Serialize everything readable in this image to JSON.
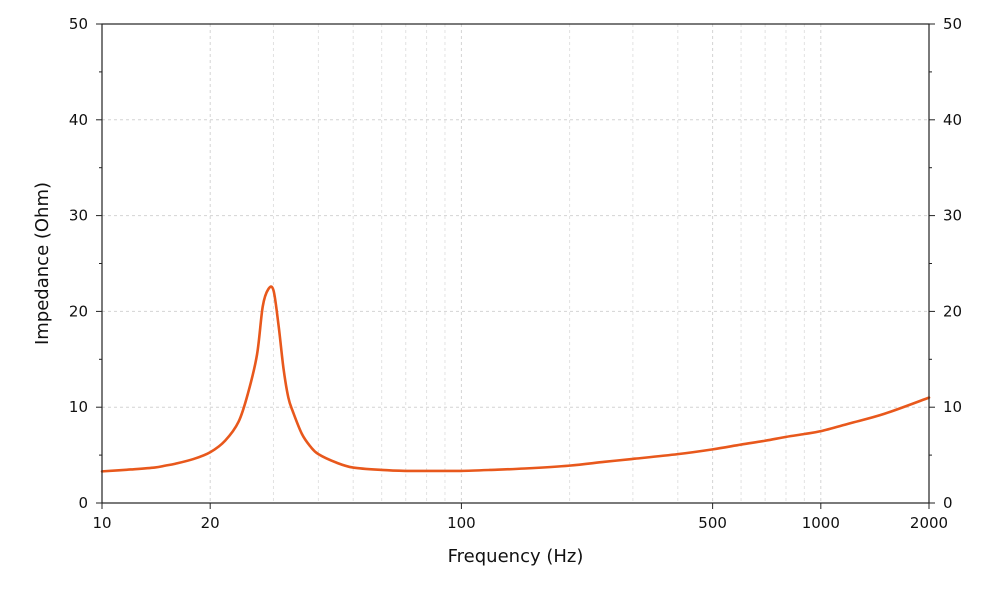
{
  "chart_data": {
    "type": "line",
    "title": "",
    "xlabel": "Frequency (Hz)",
    "ylabel": "Impedance (Ohm)",
    "x_scale": "log",
    "xlim": [
      10,
      2000
    ],
    "ylim": [
      0,
      50
    ],
    "x_major_ticks": [
      10,
      20,
      100,
      500,
      1000,
      2000
    ],
    "x_tick_labels": [
      "10",
      "20",
      "100",
      "500",
      "1000",
      "2000"
    ],
    "x_minor_gridlines": [
      30,
      40,
      50,
      60,
      70,
      80,
      90,
      200,
      300,
      400,
      600,
      700,
      800,
      900
    ],
    "y_ticks": [
      0,
      10,
      20,
      30,
      40,
      50
    ],
    "y_tick_labels": [
      "0",
      "10",
      "20",
      "30",
      "40",
      "50"
    ],
    "y_ticks_right": true,
    "grid": true,
    "line_color": "#e8581c",
    "series": [
      {
        "x": [
          10,
          12,
          14,
          15,
          16,
          18,
          20,
          22,
          24,
          25.5,
          27,
          28,
          29,
          30,
          31,
          32,
          33,
          34,
          36,
          38,
          40,
          45,
          50,
          60,
          70,
          80,
          90,
          100,
          120,
          150,
          200,
          250,
          300,
          400,
          500,
          600,
          700,
          800,
          900,
          1000,
          1200,
          1500,
          2000
        ],
        "y": [
          3.3,
          3.5,
          3.7,
          3.9,
          4.1,
          4.6,
          5.3,
          6.5,
          8.5,
          11.5,
          15.5,
          20.5,
          22.3,
          22.2,
          18.5,
          14.0,
          11.0,
          9.5,
          7.2,
          5.9,
          5.1,
          4.2,
          3.7,
          3.45,
          3.35,
          3.35,
          3.35,
          3.35,
          3.45,
          3.6,
          3.9,
          4.3,
          4.6,
          5.1,
          5.6,
          6.1,
          6.5,
          6.9,
          7.2,
          7.5,
          8.3,
          9.3,
          11.0
        ]
      }
    ]
  }
}
